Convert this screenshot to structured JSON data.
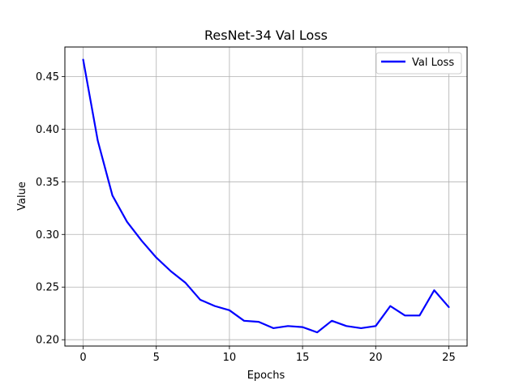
{
  "chart_data": {
    "type": "line",
    "title": "ResNet-34 Val Loss",
    "xlabel": "Epochs",
    "ylabel": "Value",
    "xlim": [
      -1.25,
      26.25
    ],
    "ylim": [
      0.194,
      0.478
    ],
    "x_ticks": [
      0,
      5,
      10,
      15,
      20,
      25
    ],
    "y_ticks": [
      0.2,
      0.25,
      0.3,
      0.35,
      0.4,
      0.45
    ],
    "x_tick_labels": [
      "0",
      "5",
      "10",
      "15",
      "20",
      "25"
    ],
    "y_tick_labels": [
      "0.20",
      "0.25",
      "0.30",
      "0.35",
      "0.40",
      "0.45"
    ],
    "grid": true,
    "legend_position": "top-right",
    "series": [
      {
        "name": "Val Loss",
        "color": "#0000ff",
        "x": [
          0,
          1,
          2,
          3,
          4,
          5,
          6,
          7,
          8,
          9,
          10,
          11,
          12,
          13,
          14,
          15,
          16,
          17,
          18,
          19,
          20,
          21,
          22,
          23,
          24,
          25
        ],
        "values": [
          0.466,
          0.389,
          0.337,
          0.312,
          0.294,
          0.278,
          0.265,
          0.254,
          0.238,
          0.232,
          0.228,
          0.218,
          0.217,
          0.211,
          0.213,
          0.212,
          0.207,
          0.218,
          0.213,
          0.211,
          0.213,
          0.232,
          0.223,
          0.223,
          0.247,
          0.231
        ]
      }
    ]
  }
}
